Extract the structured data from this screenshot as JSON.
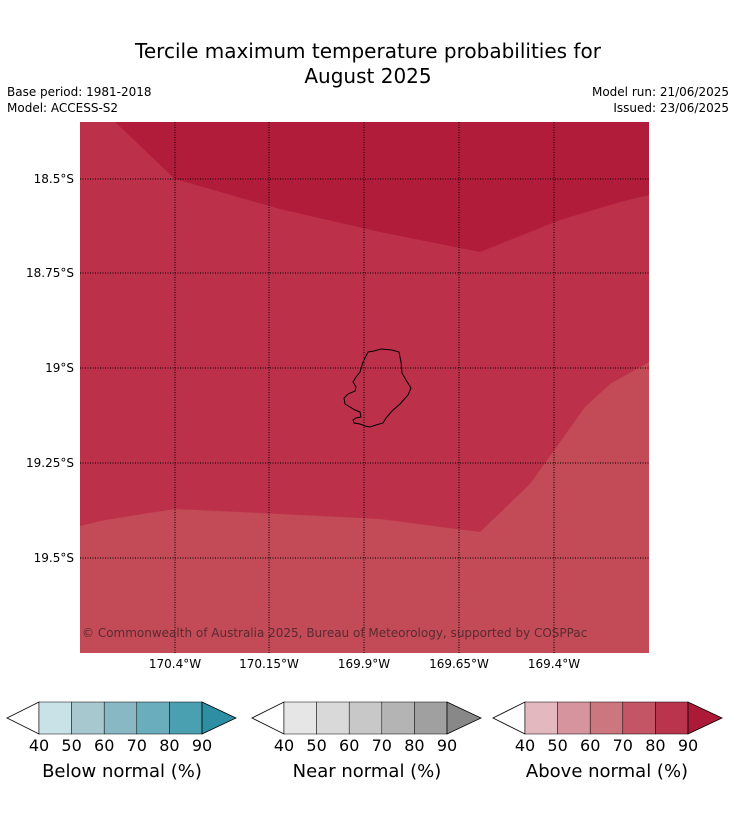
{
  "title_line1": "Tercile maximum temperature probabilities for",
  "title_line2": "August 2025",
  "meta": {
    "base_period": "Base period: 1981-2018",
    "model": "Model: ACCESS-S2",
    "model_run": "Model run: 21/06/2025",
    "issued": "Issued: 23/06/2025"
  },
  "map": {
    "lat_labels": [
      "18.5°S",
      "18.75°S",
      "19°S",
      "19.25°S",
      "19.5°S"
    ],
    "lon_labels": [
      "170.4°W",
      "170.15°W",
      "169.9°W",
      "169.65°W",
      "169.4°W"
    ],
    "copyright": "© Commonwealth of Australia 2025, Bureau of Meteorology, supported by COSPPac",
    "region_colors": {
      "above_90": "#b11c3a",
      "above_80": "#bc304a",
      "above_70": "#c24b57"
    }
  },
  "colorbars": [
    {
      "label": "Below normal (%)",
      "ticks": [
        "40",
        "50",
        "60",
        "70",
        "80",
        "90"
      ],
      "colors": [
        "#c9e2e8",
        "#a7c8cf",
        "#89b8c5",
        "#6aaebd",
        "#4a9fb1",
        "#2e8ea3"
      ]
    },
    {
      "label": "Near normal (%)",
      "ticks": [
        "40",
        "50",
        "60",
        "70",
        "80",
        "90"
      ],
      "colors": [
        "#e6e6e6",
        "#d9d9d9",
        "#c8c8c8",
        "#b4b4b4",
        "#a0a0a0",
        "#888888"
      ]
    },
    {
      "label": "Above normal (%)",
      "ticks": [
        "40",
        "50",
        "60",
        "70",
        "80",
        "90"
      ],
      "colors": [
        "#e3b8be",
        "#d5949e",
        "#cc7680",
        "#c35564",
        "#b9344c",
        "#ac1a38"
      ]
    }
  ]
}
